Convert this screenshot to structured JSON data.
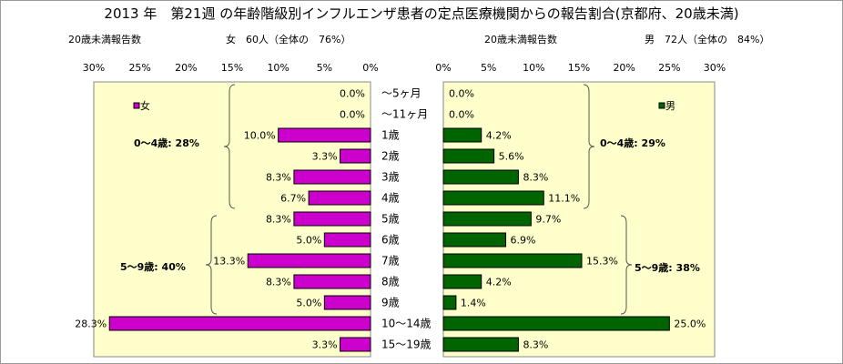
{
  "title": "2013 年　第21週 の年齢階級別インフルエンザ患者の定点医療機関からの報告割合(京都府、20歳未満)",
  "left_header": {
    "label": "20歳未満報告数",
    "summary": "女　60人（全体の　76%）"
  },
  "right_header": {
    "label": "20歳未満報告数",
    "summary": "男　72人（全体の　84%）"
  },
  "colors": {
    "female": "#cc00cc",
    "male": "#006400",
    "plot_bg": "#ffffcc",
    "bar_border": "#000000"
  },
  "chart_data": [
    {
      "type": "bar",
      "orientation": "horizontal",
      "direction": "right-to-left",
      "categories": [
        "～5ヶ月",
        "～11ヶ月",
        "1歳",
        "2歳",
        "3歳",
        "4歳",
        "5歳",
        "6歳",
        "7歳",
        "8歳",
        "9歳",
        "10～14歳",
        "15～19歳"
      ],
      "series": [
        {
          "name": "女",
          "values": [
            0.0,
            0.0,
            10.0,
            3.3,
            8.3,
            6.7,
            8.3,
            5.0,
            13.3,
            8.3,
            5.0,
            28.3,
            3.3
          ]
        }
      ],
      "data_labels": [
        "0.0%",
        "0.0%",
        "10.0%",
        "3.3%",
        "8.3%",
        "6.7%",
        "8.3%",
        "5.0%",
        "13.3%",
        "8.3%",
        "5.0%",
        "28.3%",
        "3.3%"
      ],
      "xlim": [
        0,
        30
      ],
      "xticks": [
        30,
        25,
        20,
        15,
        10,
        5,
        0
      ],
      "xtick_labels": [
        "30%",
        "25%",
        "20%",
        "15%",
        "10%",
        "5%",
        "0%"
      ],
      "legend": "top-left",
      "annotations": [
        {
          "text": "0～4歳:  28%"
        },
        {
          "text": "5～9歳:  40%"
        }
      ]
    },
    {
      "type": "bar",
      "orientation": "horizontal",
      "direction": "left-to-right",
      "categories": [
        "～5ヶ月",
        "～11ヶ月",
        "1歳",
        "2歳",
        "3歳",
        "4歳",
        "5歳",
        "6歳",
        "7歳",
        "8歳",
        "9歳",
        "10～14歳",
        "15～19歳"
      ],
      "series": [
        {
          "name": "男",
          "values": [
            0.0,
            0.0,
            4.2,
            5.6,
            8.3,
            11.1,
            9.7,
            6.9,
            15.3,
            4.2,
            1.4,
            25.0,
            8.3
          ]
        }
      ],
      "data_labels": [
        "0.0%",
        "0.0%",
        "4.2%",
        "5.6%",
        "8.3%",
        "11.1%",
        "9.7%",
        "6.9%",
        "15.3%",
        "4.2%",
        "1.4%",
        "25.0%",
        "8.3%"
      ],
      "xlim": [
        0,
        30
      ],
      "xticks": [
        0,
        5,
        10,
        15,
        20,
        25,
        30
      ],
      "xtick_labels": [
        "0%",
        "5%",
        "10%",
        "15%",
        "20%",
        "25%",
        "30%"
      ],
      "legend": "top-right",
      "annotations": [
        {
          "text": "0～4歳:  29%"
        },
        {
          "text": "5～9歳:  38%"
        }
      ]
    }
  ]
}
